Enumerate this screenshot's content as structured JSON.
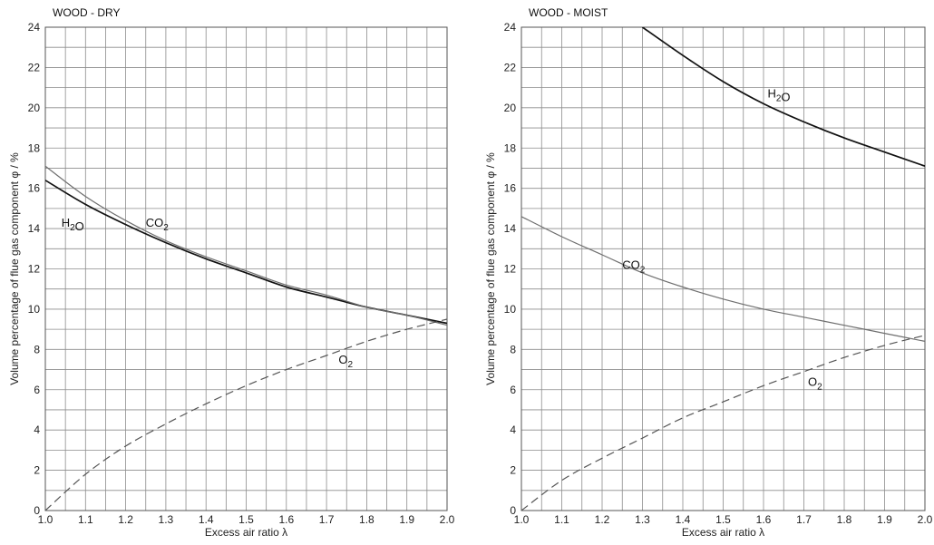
{
  "chart_data": [
    {
      "type": "line",
      "title": "WOOD - DRY",
      "xlabel": "Excess air ratio  λ",
      "ylabel": "Volume percentage of flue gas component  φ / %",
      "xlim": [
        1.0,
        2.0
      ],
      "ylim": [
        0,
        24
      ],
      "x_ticks": [
        "1.0",
        "1.1",
        "1.2",
        "1.3",
        "1.4",
        "1.5",
        "1.6",
        "1.7",
        "1.8",
        "1.9",
        "2.0"
      ],
      "y_ticks": [
        "0",
        "2",
        "4",
        "6",
        "8",
        "10",
        "12",
        "14",
        "16",
        "18",
        "20",
        "22",
        "24"
      ],
      "grid": true,
      "series": [
        {
          "name": "H₂O",
          "color": "#111111",
          "line_style": "solid",
          "x": [
            1.0,
            1.1,
            1.2,
            1.3,
            1.4,
            1.5,
            1.6,
            1.7,
            1.8,
            1.9,
            2.0
          ],
          "y": [
            16.4,
            15.2,
            14.2,
            13.3,
            12.5,
            11.8,
            11.1,
            10.6,
            10.1,
            9.7,
            9.3
          ]
        },
        {
          "name": "CO₂",
          "color": "#6f6f6f",
          "line_style": "solid",
          "x": [
            1.0,
            1.1,
            1.2,
            1.3,
            1.4,
            1.5,
            1.6,
            1.7,
            1.8,
            1.9,
            2.0
          ],
          "y": [
            17.1,
            15.6,
            14.4,
            13.4,
            12.6,
            11.9,
            11.2,
            10.7,
            10.1,
            9.7,
            9.2
          ]
        },
        {
          "name": "O₂",
          "color": "#555555",
          "line_style": "dashed",
          "x": [
            1.0,
            1.1,
            1.2,
            1.3,
            1.4,
            1.5,
            1.6,
            1.7,
            1.8,
            1.9,
            2.0
          ],
          "y": [
            0.0,
            1.8,
            3.2,
            4.3,
            5.3,
            6.2,
            7.0,
            7.7,
            8.4,
            9.0,
            9.5
          ]
        }
      ]
    },
    {
      "type": "line",
      "title": "WOOD - MOIST",
      "xlabel": "Excess air ratio  λ",
      "ylabel": "Volume percentage of flue gas component  φ / %",
      "xlim": [
        1.0,
        2.0
      ],
      "ylim": [
        0,
        24
      ],
      "x_ticks": [
        "1.0",
        "1.1",
        "1.2",
        "1.3",
        "1.4",
        "1.5",
        "1.6",
        "1.7",
        "1.8",
        "1.9",
        "2.0"
      ],
      "y_ticks": [
        "0",
        "2",
        "4",
        "6",
        "8",
        "10",
        "12",
        "14",
        "16",
        "18",
        "20",
        "22",
        "24"
      ],
      "grid": true,
      "series": [
        {
          "name": "H₂O",
          "color": "#111111",
          "line_style": "solid",
          "x": [
            1.3,
            1.4,
            1.5,
            1.6,
            1.7,
            1.8,
            1.9,
            2.0
          ],
          "y": [
            24.0,
            22.6,
            21.3,
            20.2,
            19.3,
            18.5,
            17.8,
            17.1
          ]
        },
        {
          "name": "CO₂",
          "color": "#6f6f6f",
          "line_style": "solid",
          "x": [
            1.0,
            1.1,
            1.2,
            1.3,
            1.4,
            1.5,
            1.6,
            1.7,
            1.8,
            1.9,
            2.0
          ],
          "y": [
            14.6,
            13.6,
            12.7,
            11.8,
            11.1,
            10.5,
            10.0,
            9.6,
            9.2,
            8.8,
            8.4
          ]
        },
        {
          "name": "O₂",
          "color": "#555555",
          "line_style": "dashed",
          "x": [
            1.0,
            1.1,
            1.2,
            1.3,
            1.4,
            1.5,
            1.6,
            1.7,
            1.8,
            1.9,
            2.0
          ],
          "y": [
            0.0,
            1.5,
            2.6,
            3.6,
            4.6,
            5.4,
            6.2,
            6.9,
            7.6,
            8.2,
            8.7
          ]
        }
      ]
    }
  ]
}
